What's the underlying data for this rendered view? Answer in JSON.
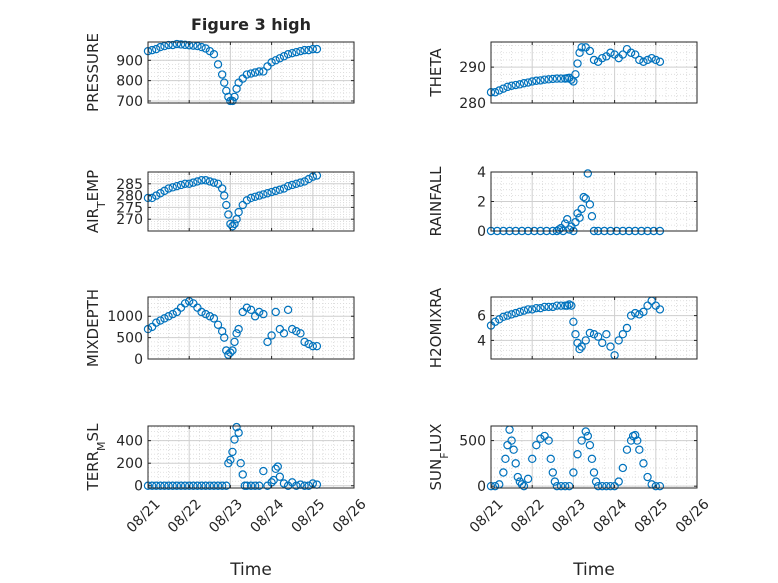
{
  "figure": {
    "title": "Figure 3 high",
    "xlabel": "Time",
    "xtick_labels": [
      "08/21",
      "08/22",
      "08/23",
      "08/24",
      "08/25",
      "08/26"
    ],
    "marker_color": "#0072bd"
  },
  "chart_data": [
    {
      "type": "scatter",
      "name": "pressure",
      "ylabel": "PRESSURE",
      "ylabel_html": "PRESSURE",
      "ylim": [
        690,
        990
      ],
      "yticks": [
        700,
        800,
        900
      ],
      "x": [
        0.0,
        0.1,
        0.2,
        0.3,
        0.4,
        0.5,
        0.6,
        0.7,
        0.8,
        0.9,
        1.0,
        1.1,
        1.2,
        1.3,
        1.4,
        1.5,
        1.6,
        1.7,
        1.8,
        1.85,
        1.9,
        1.95,
        2.0,
        2.05,
        2.1,
        2.15,
        2.2,
        2.3,
        2.4,
        2.5,
        2.6,
        2.7,
        2.8,
        2.9,
        3.0,
        3.1,
        3.2,
        3.3,
        3.4,
        3.5,
        3.6,
        3.7,
        3.8,
        3.9,
        4.0,
        4.1
      ],
      "y": [
        945,
        950,
        955,
        965,
        970,
        975,
        975,
        980,
        978,
        976,
        974,
        972,
        970,
        965,
        958,
        945,
        930,
        880,
        830,
        790,
        750,
        720,
        700,
        700,
        720,
        760,
        790,
        810,
        830,
        835,
        840,
        845,
        845,
        870,
        890,
        900,
        910,
        920,
        930,
        935,
        940,
        945,
        950,
        950,
        955,
        955
      ]
    },
    {
      "type": "scatter",
      "name": "theta",
      "ylabel": "THETA",
      "ylabel_html": "THETA",
      "ylim": [
        280,
        297
      ],
      "yticks": [
        280,
        290
      ],
      "x": [
        0.0,
        0.1,
        0.2,
        0.3,
        0.4,
        0.5,
        0.6,
        0.7,
        0.8,
        0.9,
        1.0,
        1.1,
        1.2,
        1.3,
        1.4,
        1.5,
        1.6,
        1.7,
        1.8,
        1.85,
        1.9,
        1.95,
        2.0,
        2.05,
        2.1,
        2.15,
        2.2,
        2.3,
        2.4,
        2.5,
        2.6,
        2.7,
        2.8,
        2.9,
        3.0,
        3.1,
        3.2,
        3.3,
        3.4,
        3.5,
        3.6,
        3.7,
        3.8,
        3.9,
        4.0,
        4.1
      ],
      "y": [
        283,
        283,
        283.5,
        284,
        284.5,
        284.8,
        285,
        285.2,
        285.5,
        285.7,
        286,
        286.2,
        286.3,
        286.5,
        286.6,
        286.7,
        286.8,
        286.8,
        286.8,
        286.9,
        287,
        286.5,
        286,
        288,
        291,
        294,
        295.5,
        295.5,
        294.5,
        292,
        291.5,
        292.5,
        293,
        294,
        293.5,
        292.5,
        293.5,
        295,
        294,
        293.5,
        292,
        291.5,
        292,
        292.5,
        292,
        291.5
      ]
    },
    {
      "type": "scatter",
      "name": "air_temp",
      "ylabel": "AIR_TEMP",
      "ylabel_html": "AIR<tspan baseline-shift=\"sub\" font-size=\"11\">T</tspan>EMP",
      "ylim": [
        265,
        290
      ],
      "yticks": [
        270,
        275,
        280,
        285
      ],
      "x": [
        0.0,
        0.1,
        0.2,
        0.3,
        0.4,
        0.5,
        0.6,
        0.7,
        0.8,
        0.9,
        1.0,
        1.1,
        1.2,
        1.3,
        1.4,
        1.5,
        1.6,
        1.7,
        1.8,
        1.85,
        1.9,
        1.95,
        2.0,
        2.05,
        2.1,
        2.15,
        2.2,
        2.3,
        2.4,
        2.5,
        2.6,
        2.7,
        2.8,
        2.9,
        3.0,
        3.1,
        3.2,
        3.3,
        3.4,
        3.5,
        3.6,
        3.7,
        3.8,
        3.9,
        4.0,
        4.1
      ],
      "y": [
        279,
        279,
        280,
        281,
        282,
        283,
        283.5,
        284,
        284.5,
        285,
        285,
        285.5,
        286,
        286.5,
        286.5,
        286,
        285.5,
        285,
        283,
        280,
        276,
        272,
        268,
        267,
        268,
        270,
        273,
        276,
        278,
        279,
        279.5,
        280,
        280.5,
        281,
        281.5,
        282,
        282.5,
        283,
        284,
        284.5,
        285,
        285.5,
        286,
        287,
        288,
        288.5
      ]
    },
    {
      "type": "scatter",
      "name": "rainfall",
      "ylabel": "RAINFALL",
      "ylabel_html": "RAINFALL",
      "ylim": [
        0,
        4
      ],
      "yticks": [
        0,
        2,
        4
      ],
      "x": [
        0.0,
        0.15,
        0.3,
        0.45,
        0.6,
        0.75,
        0.9,
        1.05,
        1.2,
        1.35,
        1.5,
        1.6,
        1.65,
        1.7,
        1.75,
        1.8,
        1.85,
        1.9,
        1.95,
        2.0,
        2.05,
        2.1,
        2.15,
        2.2,
        2.25,
        2.3,
        2.35,
        2.4,
        2.45,
        2.5,
        2.6,
        2.75,
        2.9,
        3.05,
        3.2,
        3.35,
        3.5,
        3.65,
        3.8,
        3.95,
        4.1
      ],
      "y": [
        0,
        0,
        0,
        0,
        0,
        0,
        0,
        0,
        0,
        0,
        0,
        0,
        0.1,
        0.2,
        0,
        0.5,
        0.8,
        0.1,
        0.3,
        0,
        0.6,
        1.2,
        0.9,
        1.5,
        2.3,
        2.2,
        3.9,
        1.8,
        1.0,
        0,
        0,
        0,
        0,
        0,
        0,
        0,
        0,
        0,
        0,
        0,
        0
      ]
    },
    {
      "type": "scatter",
      "name": "mixdepth",
      "ylabel": "MIXDEPTH",
      "ylabel_html": "MIXDEPTH",
      "ylim": [
        0,
        1450
      ],
      "yticks": [
        0,
        500,
        1000
      ],
      "x": [
        0.0,
        0.1,
        0.2,
        0.3,
        0.4,
        0.5,
        0.6,
        0.7,
        0.8,
        0.9,
        1.0,
        1.1,
        1.2,
        1.3,
        1.4,
        1.5,
        1.6,
        1.7,
        1.8,
        1.85,
        1.9,
        1.95,
        2.0,
        2.05,
        2.1,
        2.15,
        2.2,
        2.3,
        2.4,
        2.5,
        2.6,
        2.7,
        2.8,
        2.9,
        3.0,
        3.1,
        3.2,
        3.3,
        3.4,
        3.5,
        3.6,
        3.7,
        3.8,
        3.9,
        4.0,
        4.1
      ],
      "y": [
        700,
        750,
        850,
        900,
        950,
        1000,
        1050,
        1100,
        1200,
        1300,
        1350,
        1300,
        1200,
        1100,
        1050,
        1000,
        950,
        800,
        650,
        500,
        200,
        100,
        150,
        200,
        400,
        600,
        700,
        1100,
        1200,
        1150,
        1000,
        1100,
        1050,
        400,
        550,
        1100,
        700,
        600,
        1150,
        700,
        650,
        600,
        400,
        350,
        300,
        300
      ]
    },
    {
      "type": "scatter",
      "name": "h2omixra",
      "ylabel": "H2OMIXRA",
      "ylabel_html": "H2OMIXRA",
      "ylim": [
        2.5,
        7.5
      ],
      "yticks": [
        4,
        6
      ],
      "x": [
        0.0,
        0.1,
        0.2,
        0.3,
        0.4,
        0.5,
        0.6,
        0.7,
        0.8,
        0.9,
        1.0,
        1.1,
        1.2,
        1.3,
        1.4,
        1.5,
        1.6,
        1.7,
        1.8,
        1.85,
        1.9,
        1.95,
        2.0,
        2.05,
        2.1,
        2.15,
        2.2,
        2.3,
        2.4,
        2.5,
        2.6,
        2.7,
        2.8,
        2.9,
        3.0,
        3.1,
        3.2,
        3.3,
        3.4,
        3.5,
        3.6,
        3.7,
        3.8,
        3.9,
        4.0,
        4.1
      ],
      "y": [
        5.2,
        5.5,
        5.7,
        5.9,
        6.0,
        6.1,
        6.2,
        6.3,
        6.4,
        6.5,
        6.5,
        6.6,
        6.6,
        6.7,
        6.7,
        6.7,
        6.8,
        6.8,
        6.8,
        6.8,
        6.9,
        6.8,
        5.5,
        4.5,
        3.8,
        3.3,
        3.5,
        4.0,
        4.6,
        4.5,
        4.3,
        3.8,
        4.5,
        3.5,
        2.8,
        4.0,
        4.5,
        5.0,
        6.0,
        6.2,
        6.1,
        6.3,
        6.8,
        7.2,
        6.8,
        6.5
      ]
    },
    {
      "type": "scatter",
      "name": "terr_msl",
      "ylabel": "TERR_MSL",
      "ylabel_html": "TERR<tspan baseline-shift=\"sub\" font-size=\"11\">M</tspan>SL",
      "ylim": [
        -20,
        530
      ],
      "yticks": [
        0,
        200,
        400
      ],
      "x": [
        0.0,
        0.1,
        0.2,
        0.3,
        0.4,
        0.5,
        0.6,
        0.7,
        0.8,
        0.9,
        1.0,
        1.1,
        1.2,
        1.3,
        1.4,
        1.5,
        1.6,
        1.7,
        1.8,
        1.9,
        1.95,
        2.0,
        2.05,
        2.1,
        2.15,
        2.2,
        2.25,
        2.3,
        2.35,
        2.4,
        2.5,
        2.6,
        2.7,
        2.8,
        2.9,
        3.0,
        3.05,
        3.1,
        3.15,
        3.2,
        3.3,
        3.4,
        3.5,
        3.6,
        3.7,
        3.8,
        3.9,
        4.0,
        4.1
      ],
      "y": [
        0,
        0,
        0,
        0,
        0,
        0,
        0,
        0,
        0,
        0,
        0,
        0,
        0,
        0,
        0,
        0,
        0,
        0,
        0,
        0,
        200,
        230,
        300,
        410,
        520,
        470,
        200,
        100,
        0,
        0,
        0,
        0,
        0,
        130,
        0,
        30,
        50,
        150,
        170,
        80,
        20,
        0,
        30,
        0,
        10,
        0,
        0,
        20,
        10
      ]
    },
    {
      "type": "scatter",
      "name": "sun_flux",
      "ylabel": "SUN_FLUX",
      "ylabel_html": "SUN<tspan baseline-shift=\"sub\" font-size=\"11\">F</tspan>LUX",
      "ylim": [
        -20,
        660
      ],
      "yticks": [
        0,
        500
      ],
      "x": [
        0.0,
        0.1,
        0.2,
        0.3,
        0.35,
        0.4,
        0.45,
        0.5,
        0.55,
        0.6,
        0.65,
        0.7,
        0.75,
        0.8,
        0.9,
        1.0,
        1.1,
        1.2,
        1.3,
        1.4,
        1.45,
        1.5,
        1.55,
        1.6,
        1.7,
        1.8,
        1.9,
        2.0,
        2.1,
        2.2,
        2.3,
        2.35,
        2.4,
        2.45,
        2.5,
        2.55,
        2.6,
        2.7,
        2.8,
        2.9,
        3.0,
        3.1,
        3.2,
        3.3,
        3.4,
        3.45,
        3.5,
        3.55,
        3.6,
        3.7,
        3.8,
        3.9,
        4.0,
        4.1
      ],
      "y": [
        0,
        0,
        20,
        150,
        300,
        450,
        620,
        500,
        400,
        250,
        100,
        50,
        20,
        0,
        80,
        300,
        450,
        520,
        550,
        500,
        300,
        150,
        50,
        0,
        0,
        0,
        0,
        150,
        350,
        500,
        600,
        550,
        450,
        300,
        150,
        50,
        0,
        0,
        0,
        0,
        0,
        50,
        200,
        400,
        500,
        550,
        560,
        500,
        400,
        250,
        100,
        20,
        0,
        0
      ]
    }
  ]
}
